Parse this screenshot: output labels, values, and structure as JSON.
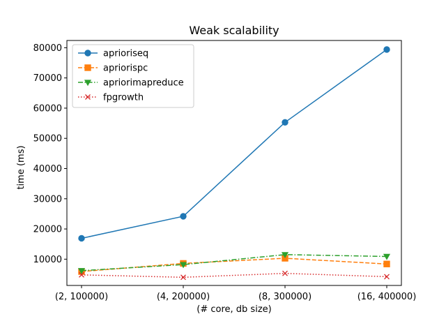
{
  "chart_data": {
    "type": "line",
    "title": "Weak scalability",
    "xlabel": "(# core, db size)",
    "ylabel": "time (ms)",
    "categories": [
      "(2, 100000)",
      "(4, 200000)",
      "(8, 300000)",
      "(16, 400000)"
    ],
    "ylim": [
      1300,
      82400
    ],
    "yticks": [
      10000,
      20000,
      30000,
      40000,
      50000,
      60000,
      70000,
      80000
    ],
    "grid": false,
    "legend_position": "top-left",
    "series": [
      {
        "name": "aprioriseq",
        "values": [
          16900,
          24200,
          55300,
          79400
        ],
        "color": "#1f77b4",
        "marker": "circle",
        "line_style": "solid"
      },
      {
        "name": "apriorispc",
        "values": [
          5900,
          8600,
          10300,
          8400
        ],
        "color": "#ff7f0e",
        "marker": "square",
        "line_style": "dashed"
      },
      {
        "name": "apriorimapreduce",
        "values": [
          6200,
          8200,
          11500,
          10900
        ],
        "color": "#2ca02c",
        "marker": "triangle-down",
        "line_style": "dashdot"
      },
      {
        "name": "fpgrowth",
        "values": [
          4800,
          4000,
          5300,
          4200
        ],
        "color": "#d62728",
        "marker": "x",
        "line_style": "dotted"
      }
    ]
  }
}
